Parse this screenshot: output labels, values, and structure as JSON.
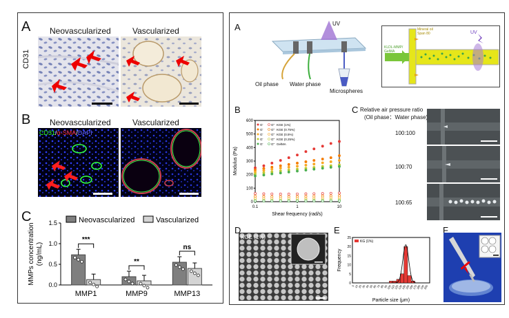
{
  "left": {
    "A": {
      "letter": "A",
      "col1": "Neovascularized",
      "col2": "Vascularized",
      "stain": "CD31"
    },
    "B": {
      "letter": "B",
      "col1": "Neovascularized",
      "col2": "Vascularized",
      "stain_cd31": "CD31",
      "stain_sep1": "/",
      "stain_asma": "α-SMA",
      "stain_sep2": "/",
      "stain_dapi": "DAPI"
    },
    "C": {
      "letter": "C"
    }
  },
  "right": {
    "A": {
      "letter": "A",
      "uv1": "UV",
      "uv2": "UV",
      "oil": "Oil phase",
      "water": "Water phase",
      "micro": "Microspheres",
      "zoom_tag": "KLDL-MMP/\nGelMA",
      "mineral": "Mineral oil\nSpan 80"
    },
    "B": {
      "letter": "B"
    },
    "C": {
      "letter": "C",
      "title_l1": "Relative air pressure ratio",
      "title_l2": "(Oil phase：Water phase)",
      "r1": "100:100",
      "r2": "100:70",
      "r3": "100:65"
    },
    "D": {
      "letter": "D",
      "tag": "KGE (1%)"
    },
    "E": {
      "letter": "E"
    },
    "F": {
      "letter": "F"
    }
  },
  "chart_data": [
    {
      "type": "bar",
      "ylabel": "MMPs concentration\n(ng/mL)",
      "ylim": [
        0,
        1.5
      ],
      "yticks": [
        "0.0",
        "0.5",
        "1.0",
        "1.5"
      ],
      "categories": [
        "MMP1",
        "MMP9",
        "MMP13"
      ],
      "series": [
        {
          "name": "Neovascularized",
          "values": [
            0.73,
            0.2,
            0.55
          ],
          "color": "#7f7f7f"
        },
        {
          "name": "Vascularized",
          "values": [
            0.13,
            0.1,
            0.4
          ],
          "color": "#d4d4d4"
        }
      ],
      "significance": [
        "***",
        "**",
        "ns"
      ],
      "legend_position": "top"
    },
    {
      "type": "line",
      "xlabel": "Shear frequency (rad/s)",
      "ylabel": "Modulus (Pa)",
      "xscale": "log",
      "xlim": [
        0.1,
        10
      ],
      "ylim": [
        0,
        600
      ],
      "xticks": [
        "0.1",
        "1",
        "10"
      ],
      "yticks": [
        "0",
        "100",
        "200",
        "300",
        "400",
        "500",
        "600"
      ],
      "legend": [
        {
          "gp": "G'",
          "gpp": "G''",
          "name": "KGE (1%)",
          "color": "#e53935"
        },
        {
          "gp": "G'",
          "gpp": "G''",
          "name": "KGE (0.75%)",
          "color": "#f57c00"
        },
        {
          "gp": "G'",
          "gpp": "G''",
          "name": "KGE (0.5%)",
          "color": "#f9a825"
        },
        {
          "gp": "G'",
          "gpp": "G''",
          "name": "KGE (0.25%)",
          "color": "#c0ca33"
        },
        {
          "gp": "G'",
          "gpp": "G''",
          "name": "GelMA",
          "color": "#4caf50"
        }
      ],
      "x": [
        0.1,
        0.16,
        0.25,
        0.4,
        0.63,
        1,
        1.6,
        2.5,
        4,
        6.3,
        10
      ],
      "series": [
        {
          "name": "G' KGE (1%)",
          "values": [
            250,
            265,
            285,
            305,
            325,
            345,
            370,
            390,
            410,
            430,
            445
          ],
          "color": "#e53935"
        },
        {
          "name": "G' KGE (0.75%)",
          "values": [
            235,
            245,
            255,
            265,
            275,
            285,
            295,
            305,
            315,
            325,
            340
          ],
          "color": "#f57c00"
        },
        {
          "name": "G' KGE (0.5%)",
          "values": [
            220,
            230,
            240,
            248,
            255,
            262,
            270,
            278,
            287,
            295,
            305
          ],
          "color": "#f9a825"
        },
        {
          "name": "G' KGE (0.25%)",
          "values": [
            205,
            213,
            220,
            227,
            234,
            240,
            247,
            253,
            260,
            266,
            272
          ],
          "color": "#c0ca33"
        },
        {
          "name": "G' GelMA",
          "values": [
            190,
            197,
            205,
            212,
            219,
            226,
            233,
            240,
            247,
            254,
            260
          ],
          "color": "#4caf50"
        },
        {
          "name": "G'' KGE (1%)",
          "values": [
            60,
            58,
            57,
            56,
            56,
            57,
            58,
            59,
            60,
            62,
            64
          ],
          "color": "#e53935"
        },
        {
          "name": "G'' KGE (0.75%)",
          "values": [
            40,
            39,
            38,
            38,
            38,
            39,
            40,
            41,
            42,
            43,
            44
          ],
          "color": "#f57c00"
        },
        {
          "name": "G'' KGE (0.5%)",
          "values": [
            25,
            24,
            24,
            24,
            24,
            25,
            25,
            26,
            27,
            28,
            28
          ],
          "color": "#f9a825"
        },
        {
          "name": "G'' KGE (0.25%)",
          "values": [
            12,
            12,
            12,
            12,
            12,
            12,
            13,
            13,
            13,
            14,
            14
          ],
          "color": "#c0ca33"
        },
        {
          "name": "G'' GelMA",
          "values": [
            5,
            5,
            5,
            5,
            5,
            5,
            5,
            6,
            6,
            6,
            6
          ],
          "color": "#4caf50"
        }
      ]
    },
    {
      "type": "bar",
      "xlabel": "Particle size (μm)",
      "ylabel": "Frequency",
      "ylim": [
        0,
        25
      ],
      "yticks": [
        "0",
        "5",
        "10",
        "15",
        "20",
        "25"
      ],
      "categories": [
        "0",
        "10",
        "20",
        "30",
        "40",
        "50",
        "60",
        "70",
        "80",
        "90",
        "100",
        "110",
        "120",
        "130",
        "140",
        "150",
        "160",
        "170",
        "180",
        "190",
        "200"
      ],
      "values": [
        0,
        0,
        0,
        0,
        0,
        0,
        0,
        0,
        0,
        0,
        1,
        1,
        2,
        5,
        20,
        4,
        1,
        0,
        0,
        0,
        0
      ],
      "legend": "KG (1%)",
      "color": "#e53935",
      "fit": "gaussian",
      "fit_center": 140,
      "fit_sigma": 8,
      "fit_peak": 21
    }
  ]
}
